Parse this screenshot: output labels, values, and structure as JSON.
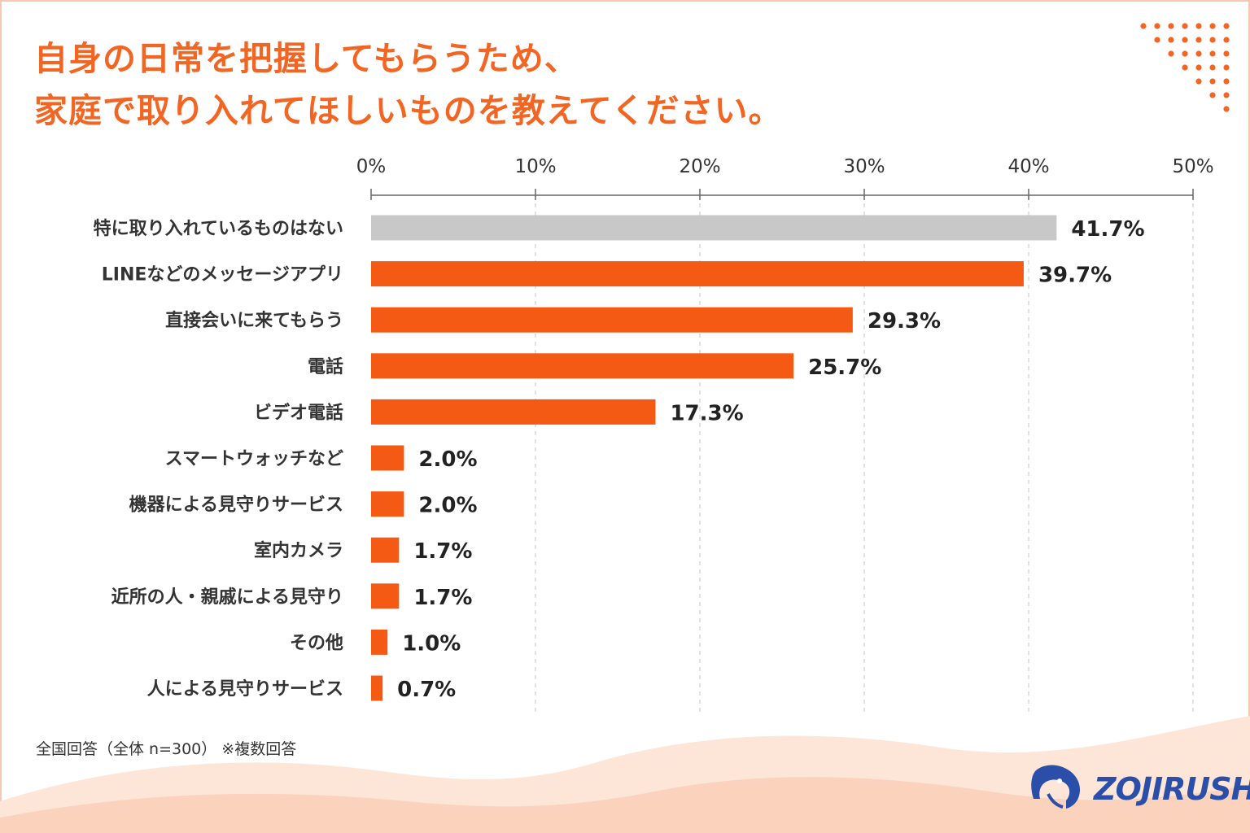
{
  "header": {
    "title_line1": "自身の日常を把握してもらうため、",
    "title_line2": "家庭で取り入れてほしいものを教えてください。"
  },
  "chart_data": {
    "type": "bar",
    "orientation": "horizontal",
    "categories": [
      "特に取り入れているものはない",
      "LINEなどのメッセージアプリ",
      "直接会いに来てもらう",
      "電話",
      "ビデオ電話",
      "スマートウォッチなど",
      "機器による見守りサービス",
      "室内カメラ",
      "近所の人・親戚による見守り",
      "その他",
      "人による見守りサービス"
    ],
    "values": [
      41.7,
      39.7,
      29.3,
      25.7,
      17.3,
      2.0,
      2.0,
      1.7,
      1.7,
      1.0,
      0.7
    ],
    "value_labels": [
      "41.7%",
      "39.7%",
      "29.3%",
      "25.7%",
      "17.3%",
      "2.0%",
      "2.0%",
      "1.7%",
      "1.7%",
      "1.0%",
      "0.7%"
    ],
    "bar_colors": [
      "#c8c8c8",
      "#f45a14",
      "#f45a14",
      "#f45a14",
      "#f45a14",
      "#f45a14",
      "#f45a14",
      "#f45a14",
      "#f45a14",
      "#f45a14",
      "#f45a14"
    ],
    "xlim": [
      0,
      50
    ],
    "xticks": [
      0,
      10,
      20,
      30,
      40,
      50
    ],
    "xtick_labels": [
      "0%",
      "10%",
      "20%",
      "30%",
      "40%",
      "50%"
    ],
    "axis_position": "top",
    "grid": true,
    "title": "",
    "xlabel": "",
    "ylabel": ""
  },
  "footer": {
    "note": "全国回答（全体 n=300） ※複数回答"
  },
  "brand": {
    "logo_text": "ZOJIRUSHI",
    "logo_color": "#2b4fa8",
    "accent": "#f26522",
    "wave_color": "#fbd9c6"
  }
}
